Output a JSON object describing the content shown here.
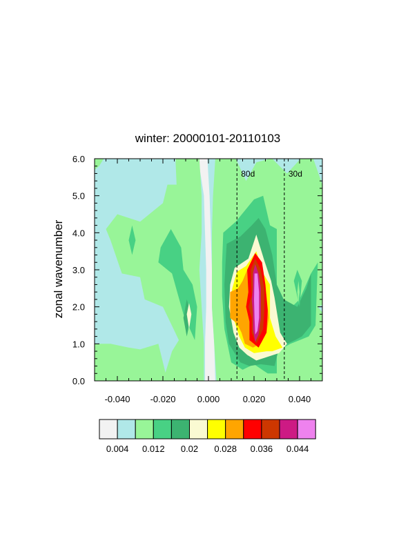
{
  "chart_data": {
    "type": "heatmap",
    "title": "winter: 20000101-20110103",
    "xlabel": "",
    "ylabel": "zonal wavenumber",
    "xlim": [
      -0.05,
      0.05
    ],
    "ylim": [
      0,
      6
    ],
    "x_ticks": [
      -0.04,
      -0.02,
      0.0,
      0.02,
      0.04
    ],
    "x_tick_labels": [
      "-0.040",
      "-0.020",
      "0.000",
      "0.020",
      "0.040"
    ],
    "y_ticks": [
      0,
      1,
      2,
      3,
      4,
      5,
      6
    ],
    "y_tick_labels": [
      "0.0",
      "1.0",
      "2.0",
      "3.0",
      "4.0",
      "5.0",
      "6.0"
    ],
    "reference_lines": [
      {
        "label": "80d",
        "x": 0.0125,
        "style": "dashed"
      },
      {
        "label": "30d",
        "x": 0.0333,
        "style": "dashed"
      }
    ],
    "contour_levels": [
      0.004,
      0.008,
      0.012,
      0.016,
      0.02,
      0.024,
      0.028,
      0.032,
      0.036,
      0.04,
      0.044
    ],
    "colorbar_labels": [
      "0.004",
      "0.012",
      "0.02",
      "0.028",
      "0.036",
      "0.044"
    ],
    "colorbar_colors": [
      "#f2f2f2",
      "#b0e8e8",
      "#98f598",
      "#48d184",
      "#3cb371",
      "#fafad2",
      "#ffff00",
      "#ffa500",
      "#ff0000",
      "#cd3700",
      "#cd1a84",
      "#ee82ee"
    ],
    "regions": [
      {
        "level": 1,
        "points": [
          [
            -0.05,
            6
          ],
          [
            0.05,
            6
          ],
          [
            0.05,
            0
          ],
          [
            -0.05,
            0
          ]
        ]
      },
      {
        "level": 0,
        "points": [
          [
            -0.05,
            0
          ],
          [
            -0.0475,
            0
          ],
          [
            -0.0465,
            0.3
          ],
          [
            -0.0455,
            0.8
          ],
          [
            -0.05,
            0.9
          ]
        ]
      },
      {
        "level": 0,
        "points": [
          [
            0.045,
            0
          ],
          [
            0.05,
            0
          ],
          [
            0.05,
            0.4
          ]
        ]
      },
      {
        "level": 0,
        "points": [
          [
            -0.0045,
            6
          ],
          [
            -0.0005,
            6
          ],
          [
            0.0005,
            5.0
          ],
          [
            0.001,
            4.0
          ],
          [
            0.0015,
            3.0
          ],
          [
            0.0015,
            2.0
          ],
          [
            0.0025,
            1.0
          ],
          [
            0.003,
            0
          ],
          [
            -0.0015,
            0
          ],
          [
            -0.0015,
            1.0
          ],
          [
            -0.001,
            2.0
          ],
          [
            -0.001,
            3.0
          ],
          [
            -0.0015,
            4.0
          ],
          [
            -0.002,
            5.0
          ]
        ]
      },
      {
        "level": 2,
        "points": [
          [
            0.003,
            6
          ],
          [
            0.012,
            6
          ],
          [
            0.0165,
            5.4
          ],
          [
            0.021,
            5.9
          ],
          [
            0.027,
            6
          ],
          [
            0.05,
            6
          ],
          [
            0.05,
            0
          ],
          [
            0.0035,
            0
          ],
          [
            0.0025,
            1.0
          ],
          [
            0.0015,
            2.0
          ],
          [
            0.0015,
            3.0
          ],
          [
            0.0015,
            4.0
          ],
          [
            0.002,
            5.0
          ]
        ]
      },
      {
        "level": 1,
        "points": [
          [
            0.028,
            6
          ],
          [
            0.0345,
            5.6
          ],
          [
            0.0405,
            6
          ]
        ]
      },
      {
        "level": 1,
        "points": [
          [
            0.05,
            6
          ],
          [
            0.046,
            6
          ],
          [
            0.05,
            5.3
          ]
        ]
      },
      {
        "level": 1,
        "points": [
          [
            0.05,
            2.05
          ],
          [
            0.048,
            2.0
          ],
          [
            0.05,
            1.85
          ]
        ]
      },
      {
        "level": 2,
        "points": [
          [
            -0.05,
            6
          ],
          [
            -0.046,
            6
          ],
          [
            -0.048,
            5.8
          ],
          [
            -0.05,
            5.7
          ]
        ]
      },
      {
        "level": 2,
        "points": [
          [
            -0.05,
            1.0
          ],
          [
            -0.043,
            1.0
          ],
          [
            -0.035,
            0.9
          ],
          [
            -0.03,
            0.85
          ],
          [
            -0.022,
            1.0
          ],
          [
            -0.018,
            0
          ],
          [
            -0.05,
            0
          ]
        ]
      },
      {
        "level": 2,
        "points": [
          [
            -0.0145,
            6
          ],
          [
            -0.004,
            6
          ],
          [
            -0.003,
            5.0
          ],
          [
            -0.003,
            4.0
          ],
          [
            -0.004,
            3.0
          ],
          [
            -0.003,
            2.0
          ],
          [
            -0.002,
            1.0
          ],
          [
            -0.002,
            0
          ],
          [
            -0.02,
            0
          ],
          [
            -0.016,
            0.8
          ],
          [
            -0.013,
            1.1
          ],
          [
            -0.02,
            2.0
          ],
          [
            -0.028,
            2.2
          ],
          [
            -0.03,
            2.8
          ],
          [
            -0.038,
            2.9
          ],
          [
            -0.043,
            3.8
          ],
          [
            -0.045,
            4.1
          ],
          [
            -0.04,
            4.5
          ],
          [
            -0.035,
            4.4
          ],
          [
            -0.03,
            4.3
          ],
          [
            -0.02,
            4.8
          ],
          [
            -0.018,
            5.3
          ],
          [
            -0.014,
            5.3
          ]
        ]
      },
      {
        "level": 3,
        "points": [
          [
            -0.0335,
            4.2
          ],
          [
            -0.032,
            3.8
          ],
          [
            -0.0335,
            3.4
          ],
          [
            -0.035,
            3.8
          ]
        ]
      },
      {
        "level": 3,
        "points": [
          [
            -0.0165,
            4.1
          ],
          [
            -0.012,
            3.6
          ],
          [
            -0.011,
            3.0
          ],
          [
            -0.007,
            2.6
          ],
          [
            -0.005,
            2.0
          ],
          [
            -0.006,
            1.1
          ],
          [
            -0.011,
            1.8
          ],
          [
            -0.016,
            2.9
          ],
          [
            -0.022,
            3.2
          ],
          [
            -0.021,
            3.6
          ]
        ]
      },
      {
        "level": 4,
        "points": [
          [
            -0.0095,
            2.2
          ],
          [
            -0.0075,
            1.8
          ],
          [
            -0.0095,
            1.2
          ],
          [
            -0.011,
            1.7
          ]
        ]
      },
      {
        "level": 5,
        "points": [
          [
            -0.0085,
            2.1
          ],
          [
            -0.0075,
            1.8
          ],
          [
            -0.0085,
            1.4
          ],
          [
            -0.0095,
            1.8
          ]
        ]
      },
      {
        "level": 3,
        "points": [
          [
            0.0065,
            4.0
          ],
          [
            0.012,
            4.3
          ],
          [
            0.016,
            4.6
          ],
          [
            0.02,
            4.9
          ],
          [
            0.024,
            5.0
          ],
          [
            0.027,
            4.2
          ],
          [
            0.03,
            4.1
          ],
          [
            0.03,
            3.6
          ],
          [
            0.03,
            2.5
          ],
          [
            0.035,
            1.9
          ],
          [
            0.04,
            2.2
          ],
          [
            0.045,
            2.9
          ],
          [
            0.048,
            3.2
          ],
          [
            0.047,
            1.5
          ],
          [
            0.044,
            1.2
          ],
          [
            0.04,
            1.1
          ],
          [
            0.036,
            1.0
          ],
          [
            0.03,
            0.8
          ],
          [
            0.03,
            0.2
          ],
          [
            0.026,
            0.2
          ],
          [
            0.02,
            0.45
          ],
          [
            0.015,
            0.3
          ],
          [
            0.01,
            0.5
          ],
          [
            0.007,
            1.4
          ],
          [
            0.006,
            2.3
          ],
          [
            0.006,
            3.2
          ]
        ]
      },
      {
        "level": 4,
        "points": [
          [
            0.008,
            3.7
          ],
          [
            0.014,
            3.9
          ],
          [
            0.019,
            4.2
          ],
          [
            0.022,
            4.4
          ],
          [
            0.025,
            4.1
          ],
          [
            0.028,
            3.4
          ],
          [
            0.03,
            2.6
          ],
          [
            0.033,
            2.2
          ],
          [
            0.039,
            2.0
          ],
          [
            0.043,
            2.5
          ],
          [
            0.045,
            2.9
          ],
          [
            0.045,
            1.5
          ],
          [
            0.041,
            1.2
          ],
          [
            0.038,
            1.1
          ],
          [
            0.031,
            0.9
          ],
          [
            0.029,
            0.4
          ],
          [
            0.023,
            0.45
          ],
          [
            0.018,
            0.4
          ],
          [
            0.014,
            0.5
          ],
          [
            0.009,
            1.0
          ],
          [
            0.0075,
            1.6
          ],
          [
            0.007,
            2.6
          ],
          [
            0.0075,
            3.2
          ]
        ]
      },
      {
        "level": 3,
        "points": [
          [
            0.039,
            3.0
          ],
          [
            0.041,
            2.7
          ],
          [
            0.04,
            2.0
          ],
          [
            0.0375,
            2.7
          ]
        ]
      },
      {
        "level": 2,
        "points": [
          [
            0.0395,
            2.7
          ],
          [
            0.04,
            2.4
          ],
          [
            0.0395,
            2.1
          ],
          [
            0.039,
            2.4
          ]
        ]
      },
      {
        "level": 5,
        "points": [
          [
            0.0115,
            3.05
          ],
          [
            0.0175,
            3.3
          ],
          [
            0.021,
            3.95
          ],
          [
            0.0245,
            3.25
          ],
          [
            0.0275,
            2.7
          ],
          [
            0.029,
            2.25
          ],
          [
            0.0315,
            1.3
          ],
          [
            0.0345,
            1.0
          ],
          [
            0.031,
            0.75
          ],
          [
            0.026,
            0.65
          ],
          [
            0.021,
            0.55
          ],
          [
            0.017,
            0.7
          ],
          [
            0.0135,
            0.9
          ],
          [
            0.011,
            1.3
          ],
          [
            0.009,
            2.0
          ],
          [
            0.0095,
            2.6
          ]
        ]
      },
      {
        "level": 6,
        "points": [
          [
            0.0125,
            2.95
          ],
          [
            0.0165,
            3.1
          ],
          [
            0.021,
            3.5
          ],
          [
            0.024,
            2.9
          ],
          [
            0.027,
            2.6
          ],
          [
            0.027,
            1.7
          ],
          [
            0.0295,
            1.2
          ],
          [
            0.0325,
            0.9
          ],
          [
            0.028,
            0.8
          ],
          [
            0.0255,
            0.8
          ],
          [
            0.02,
            0.75
          ],
          [
            0.016,
            0.9
          ],
          [
            0.0135,
            1.2
          ],
          [
            0.0115,
            1.6
          ],
          [
            0.0095,
            2.0
          ],
          [
            0.0105,
            2.5
          ]
        ]
      },
      {
        "level": 7,
        "points": [
          [
            0.0095,
            2.4
          ],
          [
            0.013,
            2.5
          ],
          [
            0.015,
            2.7
          ],
          [
            0.017,
            3.0
          ],
          [
            0.02,
            3.3
          ],
          [
            0.022,
            3.3
          ],
          [
            0.024,
            2.8
          ],
          [
            0.0255,
            2.3
          ],
          [
            0.0265,
            1.7
          ],
          [
            0.0255,
            1.3
          ],
          [
            0.023,
            1.0
          ],
          [
            0.0195,
            0.9
          ],
          [
            0.016,
            1.0
          ],
          [
            0.0145,
            1.3
          ],
          [
            0.0125,
            1.55
          ],
          [
            0.0095,
            1.7
          ]
        ]
      },
      {
        "level": 8,
        "points": [
          [
            0.017,
            3.0
          ],
          [
            0.0205,
            3.45
          ],
          [
            0.0235,
            3.2
          ],
          [
            0.025,
            2.6
          ],
          [
            0.026,
            1.9
          ],
          [
            0.0255,
            1.3
          ],
          [
            0.022,
            0.9
          ],
          [
            0.018,
            1.1
          ],
          [
            0.018,
            1.6
          ],
          [
            0.0165,
            2.0
          ],
          [
            0.0175,
            2.4
          ]
        ]
      },
      {
        "level": 9,
        "points": [
          [
            0.0185,
            3.0
          ],
          [
            0.0205,
            3.3
          ],
          [
            0.023,
            3.0
          ],
          [
            0.0245,
            2.5
          ],
          [
            0.0245,
            1.9
          ],
          [
            0.024,
            1.4
          ],
          [
            0.021,
            1.0
          ],
          [
            0.019,
            1.3
          ],
          [
            0.019,
            1.7
          ],
          [
            0.0175,
            2.0
          ],
          [
            0.019,
            2.3
          ]
        ]
      },
      {
        "level": 10,
        "points": [
          [
            0.0195,
            2.9
          ],
          [
            0.0205,
            3.15
          ],
          [
            0.022,
            2.9
          ],
          [
            0.023,
            2.5
          ],
          [
            0.023,
            1.7
          ],
          [
            0.022,
            1.25
          ],
          [
            0.0205,
            1.05
          ],
          [
            0.0195,
            1.4
          ],
          [
            0.0195,
            1.85
          ],
          [
            0.019,
            2.2
          ],
          [
            0.0195,
            2.5
          ]
        ]
      },
      {
        "level": 11,
        "points": [
          [
            0.0202,
            2.9
          ],
          [
            0.0215,
            2.9
          ],
          [
            0.0222,
            2.4
          ],
          [
            0.0222,
            1.7
          ],
          [
            0.0215,
            1.35
          ],
          [
            0.0205,
            1.25
          ],
          [
            0.0202,
            1.7
          ],
          [
            0.02,
            2.2
          ]
        ]
      }
    ]
  }
}
